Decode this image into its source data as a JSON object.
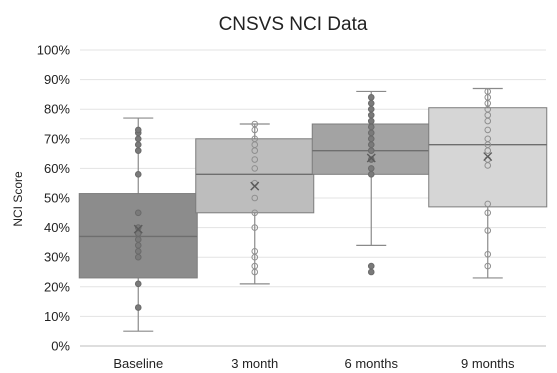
{
  "chart_data": {
    "type": "boxplot",
    "title": "CNSVS NCI Data",
    "xlabel": "",
    "ylabel": "NCI Score",
    "ylim": [
      0,
      100
    ],
    "y_ticks": [
      0,
      10,
      20,
      30,
      40,
      50,
      60,
      70,
      80,
      90,
      100
    ],
    "y_tick_labels": [
      "0%",
      "10%",
      "20%",
      "30%",
      "40%",
      "50%",
      "60%",
      "70%",
      "80%",
      "90%",
      "100%"
    ],
    "grid": true,
    "legend": "none",
    "categories": [
      "Baseline",
      "3 month",
      "6 months",
      "9 months"
    ],
    "series": [
      {
        "category": "Baseline",
        "min": 5,
        "q1": 23,
        "median": 37,
        "q3": 51.5,
        "max": 77,
        "mean": 39.5,
        "points": [
          13,
          21,
          30,
          32,
          34,
          36,
          38,
          40,
          45,
          58,
          66,
          68,
          70,
          72,
          73
        ],
        "box_color": "#8c8c8c"
      },
      {
        "category": "3 month",
        "min": 21,
        "q1": 45,
        "median": 58,
        "q3": 70,
        "max": 75,
        "mean": 54,
        "points": [
          25,
          27,
          30,
          32,
          40,
          45,
          50,
          55,
          60,
          63,
          66,
          68,
          70,
          73,
          75
        ],
        "box_color": "#bdbdbd"
      },
      {
        "category": "6 months",
        "min": 34,
        "q1": 58,
        "median": 66,
        "q3": 75,
        "max": 86,
        "mean": 63.5,
        "points": [
          25,
          27,
          58,
          60,
          63,
          66,
          68,
          70,
          72,
          74,
          76,
          78,
          80,
          82,
          84
        ],
        "box_color": "#a3a3a3"
      },
      {
        "category": "9 months",
        "min": 23,
        "q1": 47,
        "median": 68,
        "q3": 80.5,
        "max": 87,
        "mean": 64,
        "points": [
          27,
          31,
          39,
          45,
          48,
          61,
          63,
          66,
          68,
          70,
          73,
          76,
          78,
          80,
          82,
          84,
          86
        ],
        "box_color": "#d6d6d6"
      }
    ]
  }
}
